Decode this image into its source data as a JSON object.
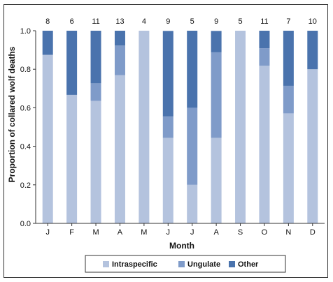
{
  "chart_data": {
    "type": "bar",
    "stacked": true,
    "title": "",
    "xlabel": "Month",
    "ylabel": "Proportion of collared wolf deaths",
    "ylim": [
      0,
      1.0
    ],
    "yticks": [
      "0.0",
      "0.2",
      "0.4",
      "0.6",
      "0.8",
      "1.0"
    ],
    "categories": [
      "J",
      "F",
      "M",
      "A",
      "M",
      "J",
      "J",
      "A",
      "S",
      "O",
      "N",
      "D"
    ],
    "counts": [
      "8",
      "6",
      "11",
      "13",
      "4",
      "9",
      "5",
      "9",
      "5",
      "11",
      "7",
      "10"
    ],
    "series": [
      {
        "name": "Intraspecific",
        "color": "#b4c3de",
        "values": [
          0.875,
          0.667,
          0.636,
          0.769,
          1.0,
          0.444,
          0.2,
          0.444,
          1.0,
          0.818,
          0.571,
          0.8
        ]
      },
      {
        "name": "Ungulate",
        "color": "#7f9bc9",
        "values": [
          0,
          0,
          0.091,
          0.154,
          0,
          0.111,
          0.4,
          0.444,
          0,
          0.091,
          0.143,
          0
        ]
      },
      {
        "name": "Other",
        "color": "#4a73ad",
        "values": [
          0.125,
          0.333,
          0.273,
          0.077,
          0,
          0.444,
          0.4,
          0.111,
          0,
          0.091,
          0.286,
          0.2
        ]
      }
    ],
    "grid": false,
    "legend": "bottom"
  }
}
